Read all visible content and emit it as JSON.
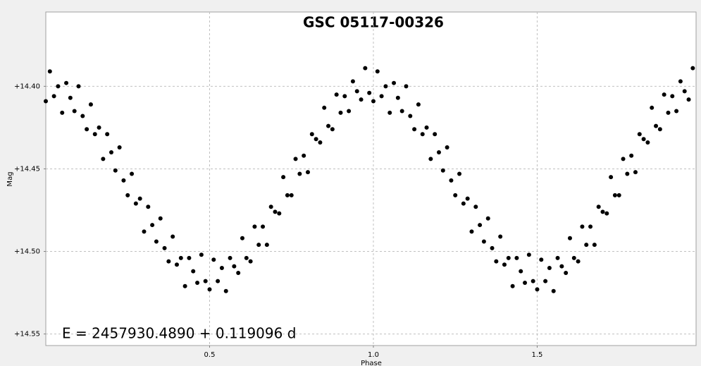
{
  "chart_data": {
    "type": "scatter",
    "title": "GSC 05117-00326",
    "annotation": "E = 2457930.4890 + 0.119096 d",
    "x_label": "Phase",
    "y_label": "Mag",
    "y_inverted": true,
    "grid": true,
    "color": "#000000",
    "xlim": [
      0,
      1.985
    ],
    "ylim": [
      14.355,
      14.557
    ],
    "xticks": [
      0.5,
      {
        "value": 1,
        "label": "1.0"
      },
      1.5
    ],
    "yticks": [
      {
        "value": 14.4,
        "label": "+14.40"
      },
      {
        "value": 14.45,
        "label": "+14.45"
      },
      {
        "value": 14.5,
        "label": "+14.50"
      },
      {
        "value": 14.55,
        "label": "+14.55"
      }
    ],
    "series": [
      {
        "name": null,
        "color": "#000000",
        "x": [
          0,
          0.0125,
          0.025,
          0.0375,
          0.05,
          0.0625,
          0.075,
          0.0875,
          0.1,
          0.1125,
          0.125,
          0.1375,
          0.15,
          0.1625,
          0.175,
          0.1875,
          0.2,
          0.2125,
          0.225,
          0.2375,
          0.25,
          0.2625,
          0.275,
          0.2875,
          0.3,
          0.3125,
          0.325,
          0.3375,
          0.35,
          0.3625,
          0.375,
          0.3875,
          0.4,
          0.4125,
          0.425,
          0.4375,
          0.45,
          0.4625,
          0.475,
          0.4875,
          0.5,
          0.5125,
          0.525,
          0.5375,
          0.55,
          0.5625,
          0.575,
          0.5875,
          0.6,
          0.6125,
          0.625,
          0.6375,
          0.65,
          0.6625,
          0.675,
          0.6875,
          0.7,
          0.7125,
          0.725,
          0.7375,
          0.75,
          0.7625,
          0.775,
          0.7875,
          0.8,
          0.8125,
          0.825,
          0.8375,
          0.85,
          0.8625,
          0.875,
          0.8875,
          0.9,
          0.9125,
          0.925,
          0.9375,
          0.95,
          0.9625,
          0.975,
          0.9875,
          1,
          1.0125,
          1.025,
          1.0375,
          1.05,
          1.0625,
          1.075,
          1.0875,
          1.1,
          1.1125,
          1.125,
          1.1375,
          1.15,
          1.1625,
          1.175,
          1.1875,
          1.2,
          1.2125,
          1.225,
          1.2375,
          1.25,
          1.2625,
          1.275,
          1.2875,
          1.3,
          1.3125,
          1.325,
          1.3375,
          1.35,
          1.3625,
          1.375,
          1.3875,
          1.4,
          1.4125,
          1.425,
          1.4375,
          1.45,
          1.4625,
          1.475,
          1.4875,
          1.5,
          1.5125,
          1.525,
          1.5375,
          1.55,
          1.5625,
          1.575,
          1.5875,
          1.6,
          1.6125,
          1.625,
          1.6375,
          1.65,
          1.6625,
          1.675,
          1.6875,
          1.7,
          1.7125,
          1.725,
          1.7375,
          1.75,
          1.7625,
          1.775,
          1.7875,
          1.8,
          1.8125,
          1.825,
          1.8375,
          1.85,
          1.8625,
          1.875,
          1.8875,
          1.9,
          1.9125,
          1.925,
          1.9375,
          1.95,
          1.9625,
          1.975
        ],
        "values": [
          14.409,
          14.391,
          14.406,
          14.4,
          14.416,
          14.398,
          14.407,
          14.415,
          14.4,
          14.418,
          14.426,
          14.411,
          14.429,
          14.425,
          14.444,
          14.429,
          14.44,
          14.451,
          14.437,
          14.457,
          14.466,
          14.453,
          14.471,
          14.468,
          14.488,
          14.473,
          14.484,
          14.494,
          14.48,
          14.498,
          14.506,
          14.491,
          14.508,
          14.504,
          14.521,
          14.504,
          14.512,
          14.519,
          14.502,
          14.518,
          14.523,
          14.505,
          14.518,
          14.51,
          14.524,
          14.504,
          14.509,
          14.513,
          14.492,
          14.504,
          14.506,
          14.485,
          14.496,
          14.485,
          14.496,
          14.473,
          14.476,
          14.477,
          14.455,
          14.466,
          14.466,
          14.444,
          14.453,
          14.442,
          14.452,
          14.429,
          14.432,
          14.434,
          14.413,
          14.424,
          14.426,
          14.405,
          14.416,
          14.406,
          14.415,
          14.397,
          14.403,
          14.408,
          14.389,
          14.404,
          14.409,
          14.391,
          14.406,
          14.4,
          14.416,
          14.398,
          14.407,
          14.415,
          14.4,
          14.418,
          14.426,
          14.411,
          14.429,
          14.425,
          14.444,
          14.429,
          14.44,
          14.451,
          14.437,
          14.457,
          14.466,
          14.453,
          14.471,
          14.468,
          14.488,
          14.473,
          14.484,
          14.494,
          14.48,
          14.498,
          14.506,
          14.491,
          14.508,
          14.504,
          14.521,
          14.504,
          14.512,
          14.519,
          14.502,
          14.518,
          14.523,
          14.505,
          14.518,
          14.51,
          14.524,
          14.504,
          14.509,
          14.513,
          14.492,
          14.504,
          14.506,
          14.485,
          14.496,
          14.485,
          14.496,
          14.473,
          14.476,
          14.477,
          14.455,
          14.466,
          14.466,
          14.444,
          14.453,
          14.442,
          14.452,
          14.429,
          14.432,
          14.434,
          14.413,
          14.424,
          14.426,
          14.405,
          14.416,
          14.406,
          14.415,
          14.397,
          14.403,
          14.408,
          14.389
        ]
      }
    ]
  }
}
